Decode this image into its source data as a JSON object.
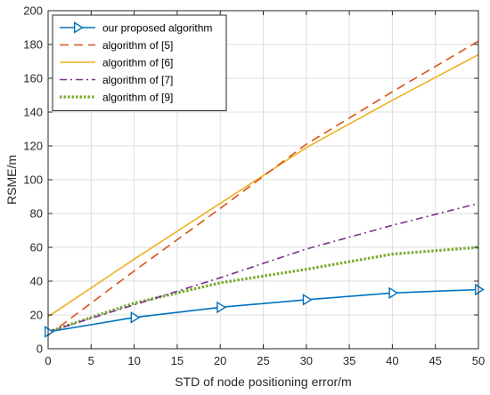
{
  "chart_data": {
    "type": "line",
    "title": "",
    "xlabel": "STD of node positioning error/m",
    "ylabel": "RSME/m",
    "xlim": [
      0,
      50
    ],
    "ylim": [
      0,
      200
    ],
    "xticks": [
      0,
      5,
      10,
      15,
      20,
      25,
      30,
      35,
      40,
      45,
      50
    ],
    "yticks": [
      0,
      20,
      40,
      60,
      80,
      100,
      120,
      140,
      160,
      180,
      200
    ],
    "grid": true,
    "legend_position": "top-left",
    "series": [
      {
        "name": "our proposed algorithm",
        "color": "#0072BD",
        "line_style": "solid",
        "marker": "triangle-right",
        "x": [
          0,
          10,
          20,
          30,
          40,
          50
        ],
        "y": [
          10,
          18.5,
          24.5,
          29,
          33,
          35
        ]
      },
      {
        "name": "algorithm of [5]",
        "color": "#D95319",
        "line_style": "dashed",
        "marker": "none",
        "x": [
          0,
          10,
          20,
          30,
          40,
          50
        ],
        "y": [
          8,
          46,
          83,
          121,
          152,
          182
        ]
      },
      {
        "name": "algorithm of [6]",
        "color": "#EDB120",
        "line_style": "solid",
        "marker": "none",
        "x": [
          0,
          10,
          20,
          30,
          40,
          50
        ],
        "y": [
          19,
          53,
          86,
          119,
          147,
          174
        ]
      },
      {
        "name": "algorithm of [7]",
        "color": "#7E2F8E",
        "line_style": "dashdot",
        "marker": "none",
        "x": [
          0,
          10,
          20,
          30,
          40,
          50
        ],
        "y": [
          10,
          26,
          42,
          59,
          73,
          86
        ]
      },
      {
        "name": "algorithm of [9]",
        "color": "#77AC30",
        "line_style": "dotted",
        "marker": "none",
        "x": [
          0,
          10,
          20,
          30,
          40,
          50
        ],
        "y": [
          10,
          27,
          39,
          47,
          56,
          60
        ]
      }
    ]
  }
}
